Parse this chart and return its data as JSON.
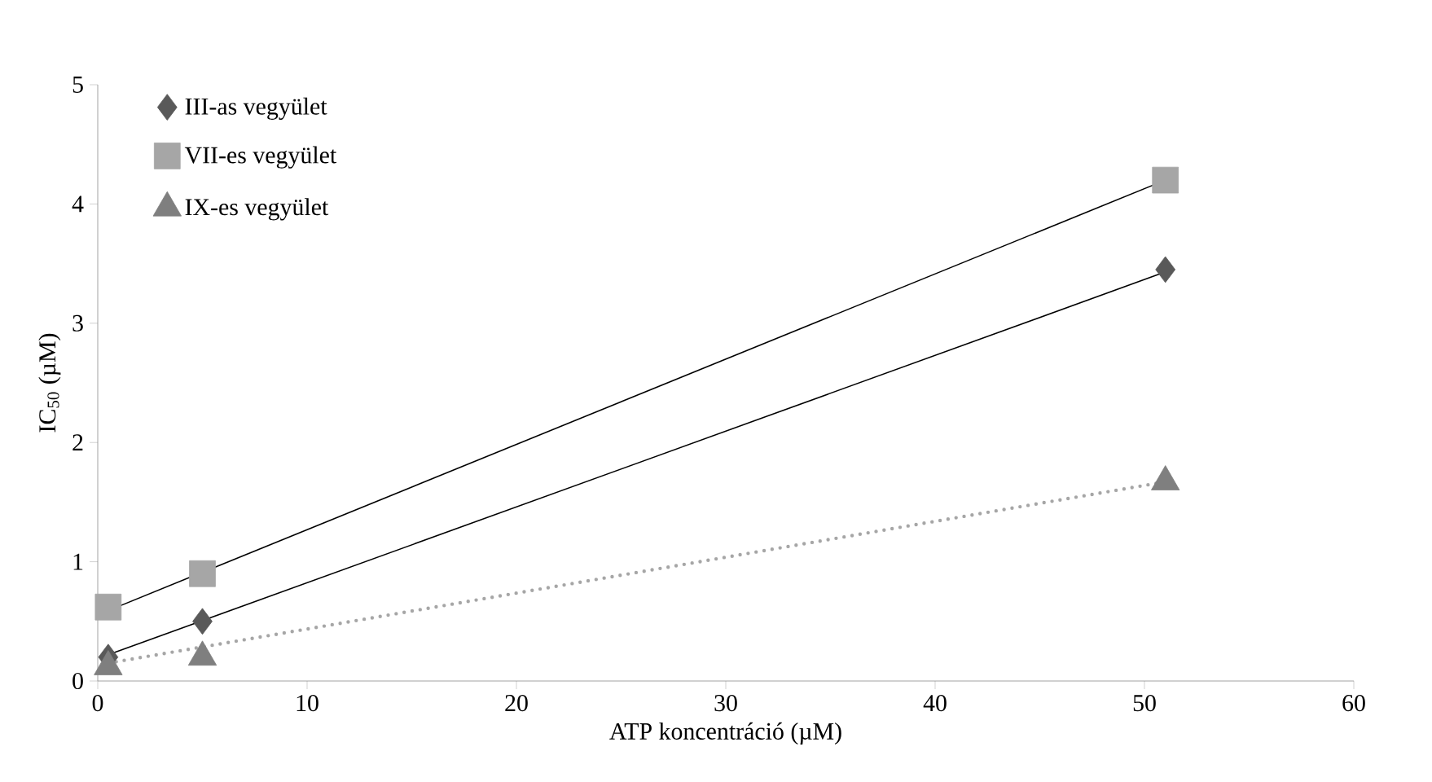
{
  "chart_data": {
    "type": "scatter",
    "xlabel": "ATP koncentráció  (µM)",
    "ylabel": "IC$_{50}$ (µM)",
    "xlim": [
      0,
      60
    ],
    "xticks": [
      0,
      10,
      20,
      30,
      40,
      50,
      60
    ],
    "ylim": [
      0,
      5
    ],
    "yticks": [
      0,
      1,
      2,
      3,
      4,
      5
    ],
    "grid": false,
    "legend": "top left",
    "series": [
      {
        "name": "III-as vegyület",
        "marker": "diamond",
        "color": "#595959",
        "x": [
          0.5,
          5,
          51
        ],
        "values": [
          0.2,
          0.5,
          3.45
        ]
      },
      {
        "name": "VII-es vegyület",
        "marker": "square",
        "color": "#a6a6a6",
        "x": [
          0.5,
          5,
          51
        ],
        "values": [
          0.62,
          0.9,
          4.2
        ]
      },
      {
        "name": "IX-es vegyület",
        "marker": "triangle",
        "color": "#7f7f7f",
        "x": [
          0.5,
          5,
          51
        ],
        "values": [
          0.12,
          0.2,
          1.67
        ]
      },
      {
        "type": "line",
        "marker": "none",
        "line_style": "solid",
        "color": "#000000",
        "x": [
          0.5,
          51
        ],
        "values": [
          0.22,
          3.43
        ]
      },
      {
        "type": "line",
        "marker": "none",
        "line_style": "solid",
        "color": "#000000",
        "x": [
          0.5,
          51
        ],
        "values": [
          0.59,
          4.2
        ]
      },
      {
        "type": "line",
        "marker": "none",
        "line_style": "dotted",
        "color": "#a6a6a6",
        "x": [
          0.5,
          51
        ],
        "values": [
          0.15,
          1.67
        ]
      }
    ]
  }
}
